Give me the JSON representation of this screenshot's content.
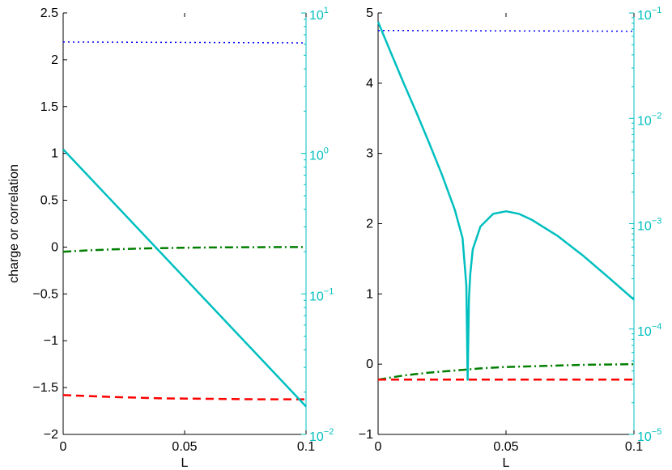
{
  "chart_data": [
    {
      "type": "line",
      "xlabel": "L",
      "ylabel": "charge or correlation",
      "xlim": [
        0,
        0.1
      ],
      "ylim": [
        -2,
        2.5
      ],
      "y2lim": [
        0.01,
        10
      ],
      "y2scale": "log",
      "grid": false,
      "x_ticks": [
        "0",
        "0.05",
        "0.1"
      ],
      "y_ticks": [
        "2.5",
        "2",
        "1.5",
        "1",
        "0.5",
        "0",
        "−0.5",
        "−1",
        "−1.5",
        "−2"
      ],
      "y2_ticks": [
        {
          "value": 10,
          "base": "10",
          "exp": "1"
        },
        {
          "value": 1,
          "base": "10",
          "exp": "0"
        },
        {
          "value": 0.1,
          "base": "10",
          "exp": "−1"
        },
        {
          "value": 0.01,
          "base": "10",
          "exp": "−2"
        }
      ],
      "series": [
        {
          "axis": "left",
          "color": "#0000ff",
          "style": "dotted",
          "x": [
            0,
            0.1
          ],
          "y": [
            2.19,
            2.18
          ]
        },
        {
          "axis": "left",
          "color": "#007f00",
          "style": "dashdot",
          "x": [
            0,
            0.01,
            0.02,
            0.03,
            0.04,
            0.05,
            0.06,
            0.07,
            0.08,
            0.09,
            0.1
          ],
          "y": [
            -0.05,
            -0.035,
            -0.025,
            -0.017,
            -0.011,
            -0.007,
            -0.004,
            -0.002,
            -0.001,
            0,
            0
          ]
        },
        {
          "axis": "left",
          "color": "#ff0000",
          "style": "dashed",
          "x": [
            0,
            0.02,
            0.04,
            0.06,
            0.08,
            0.1
          ],
          "y": [
            -1.58,
            -1.6,
            -1.615,
            -1.62,
            -1.625,
            -1.625
          ]
        },
        {
          "axis": "right",
          "color": "#00bfbf",
          "style": "solid",
          "x": [
            0,
            0.1
          ],
          "y": [
            1.07,
            0.0158
          ]
        }
      ]
    },
    {
      "type": "line",
      "xlabel": "L",
      "ylabel": "",
      "xlim": [
        0,
        0.1
      ],
      "ylim": [
        -1,
        5
      ],
      "y2lim": [
        1e-05,
        0.1
      ],
      "y2scale": "log",
      "grid": false,
      "x_ticks": [
        "0",
        "0.05",
        "0.1"
      ],
      "y_ticks": [
        "5",
        "4",
        "3",
        "2",
        "1",
        "0",
        "−1"
      ],
      "y2_ticks": [
        {
          "value": 0.1,
          "base": "10",
          "exp": "−1"
        },
        {
          "value": 0.01,
          "base": "10",
          "exp": "−2"
        },
        {
          "value": 0.001,
          "base": "10",
          "exp": "−3"
        },
        {
          "value": 0.0001,
          "base": "10",
          "exp": "−4"
        },
        {
          "value": 1e-05,
          "base": "10",
          "exp": "−5"
        }
      ],
      "series": [
        {
          "axis": "left",
          "color": "#0000ff",
          "style": "dotted",
          "x": [
            0,
            0.1
          ],
          "y": [
            4.75,
            4.74
          ]
        },
        {
          "axis": "left",
          "color": "#007f00",
          "style": "dashdot",
          "x": [
            0,
            0.01,
            0.02,
            0.03,
            0.04,
            0.05,
            0.06,
            0.07,
            0.08,
            0.09,
            0.1
          ],
          "y": [
            -0.22,
            -0.16,
            -0.12,
            -0.09,
            -0.06,
            -0.04,
            -0.03,
            -0.02,
            -0.01,
            -0.005,
            0
          ]
        },
        {
          "axis": "left",
          "color": "#ff0000",
          "style": "dashed",
          "x": [
            0,
            0.1
          ],
          "y": [
            -0.22,
            -0.22
          ]
        },
        {
          "axis": "right",
          "color": "#00bfbf",
          "style": "solid",
          "x": [
            0,
            0.005,
            0.01,
            0.015,
            0.02,
            0.025,
            0.03,
            0.033,
            0.0345,
            0.035,
            0.0355,
            0.036,
            0.037,
            0.04,
            0.045,
            0.05,
            0.055,
            0.06,
            0.07,
            0.08,
            0.09,
            0.1
          ],
          "y": [
            0.082,
            0.042,
            0.0215,
            0.0113,
            0.0058,
            0.0029,
            0.00135,
            0.00073,
            0.00026,
            3.3e-05,
            0.000195,
            0.00033,
            0.00057,
            0.00094,
            0.00124,
            0.00131,
            0.00124,
            0.00109,
            0.00077,
            0.0005,
            0.00031,
            0.00019
          ]
        }
      ]
    }
  ]
}
